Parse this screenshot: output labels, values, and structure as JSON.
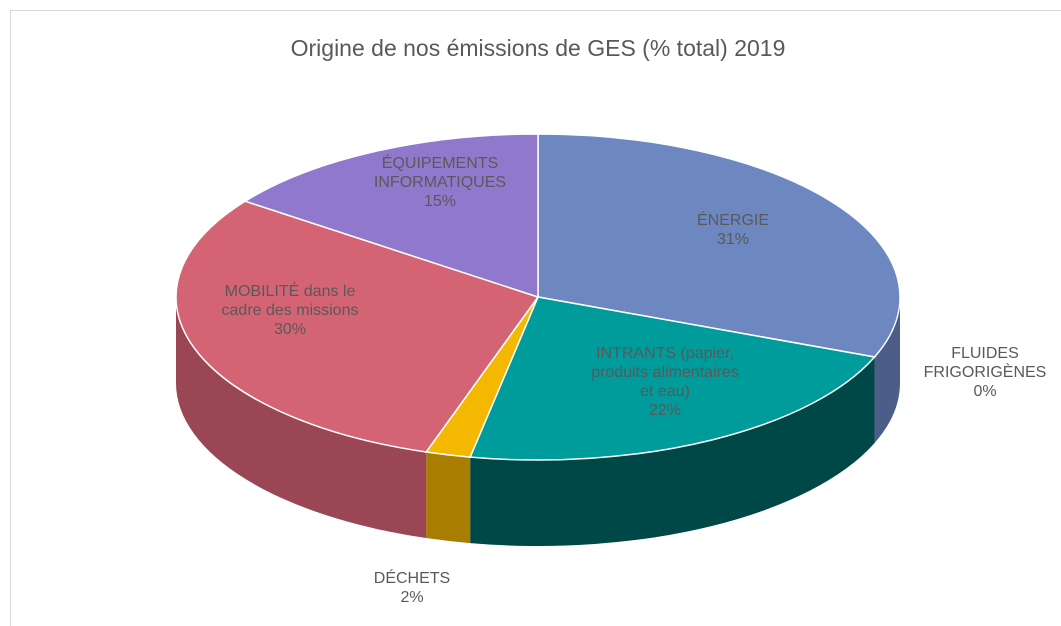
{
  "chart_data": {
    "type": "pie",
    "title": "Origine de nos émissions de GES (% total) 2019",
    "categories": [
      "ÉNERGIE",
      "FLUIDES FRIGORIGÈNES",
      "INTRANTS (papier, produits alimentaires et eau)",
      "DÉCHETS",
      "MOBILITÉ dans le cadre des missions",
      "ÉQUIPEMENTS INFORMATIQUES"
    ],
    "values": [
      31,
      0,
      22,
      2,
      30,
      15
    ],
    "value_labels": [
      "31%",
      "0%",
      "22%",
      "2%",
      "30%",
      "15%"
    ],
    "colors": [
      "#6d88c0",
      "#5b8c3e",
      "#009b9b",
      "#f5b800",
      "#d46474",
      "#9079cd"
    ],
    "side_colors": [
      "#4a5e88",
      "#3e6129",
      "#004747",
      "#a87d00",
      "#9a4654",
      "#665592"
    ]
  }
}
